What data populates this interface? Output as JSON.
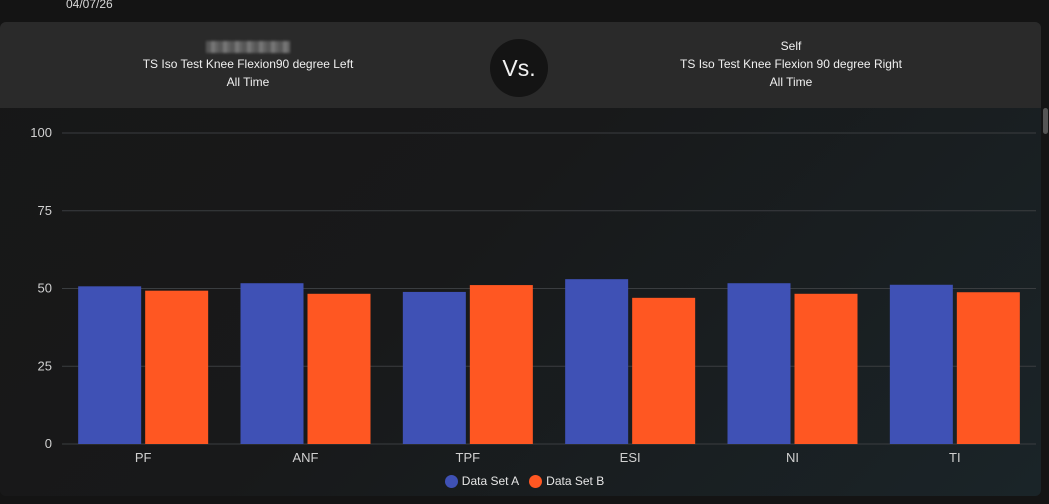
{
  "date": "04/07/26",
  "comparison": {
    "left": {
      "name_redacted": true,
      "test": "TS Iso Test Knee Flexion90 degree Left",
      "period": "All Time"
    },
    "vs_label": "Vs.",
    "right": {
      "name": "Self",
      "test": "TS Iso Test Knee Flexion 90 degree Right",
      "period": "All Time"
    }
  },
  "colors": {
    "series_a": "#3f51b5",
    "series_b": "#ff5722",
    "grid": "#3a3d40",
    "axis_text": "#d0d0d0"
  },
  "chart_data": {
    "type": "bar",
    "title": "",
    "xlabel": "",
    "ylabel": "",
    "ylim": [
      0,
      100
    ],
    "yticks": [
      0,
      25,
      50,
      75,
      100
    ],
    "grid": true,
    "legend_position": "bottom",
    "categories": [
      "PF",
      "ANF",
      "TPF",
      "ESI",
      "NI",
      "TI"
    ],
    "series": [
      {
        "name": "Data Set A",
        "values": [
          50.7,
          51.7,
          48.9,
          53.0,
          51.7,
          51.2
        ]
      },
      {
        "name": "Data Set B",
        "values": [
          49.3,
          48.3,
          51.1,
          47.0,
          48.3,
          48.8
        ]
      }
    ]
  }
}
